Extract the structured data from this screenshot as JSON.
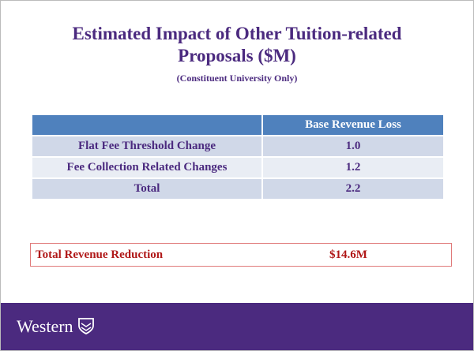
{
  "header": {
    "title": "Estimated Impact of Other Tuition-related Proposals ($M)",
    "subtitle": "(Constituent University Only)"
  },
  "table": {
    "columns": [
      "Base Revenue Loss"
    ],
    "rows": [
      [
        "Flat Fee Threshold Change",
        "1.0"
      ],
      [
        "Fee Collection Related Changes",
        "1.2"
      ],
      [
        "Total",
        "2.2"
      ]
    ]
  },
  "summary": {
    "label": "Total Revenue Reduction",
    "value": "$14.6M"
  },
  "footer": {
    "logo": "Western"
  }
}
